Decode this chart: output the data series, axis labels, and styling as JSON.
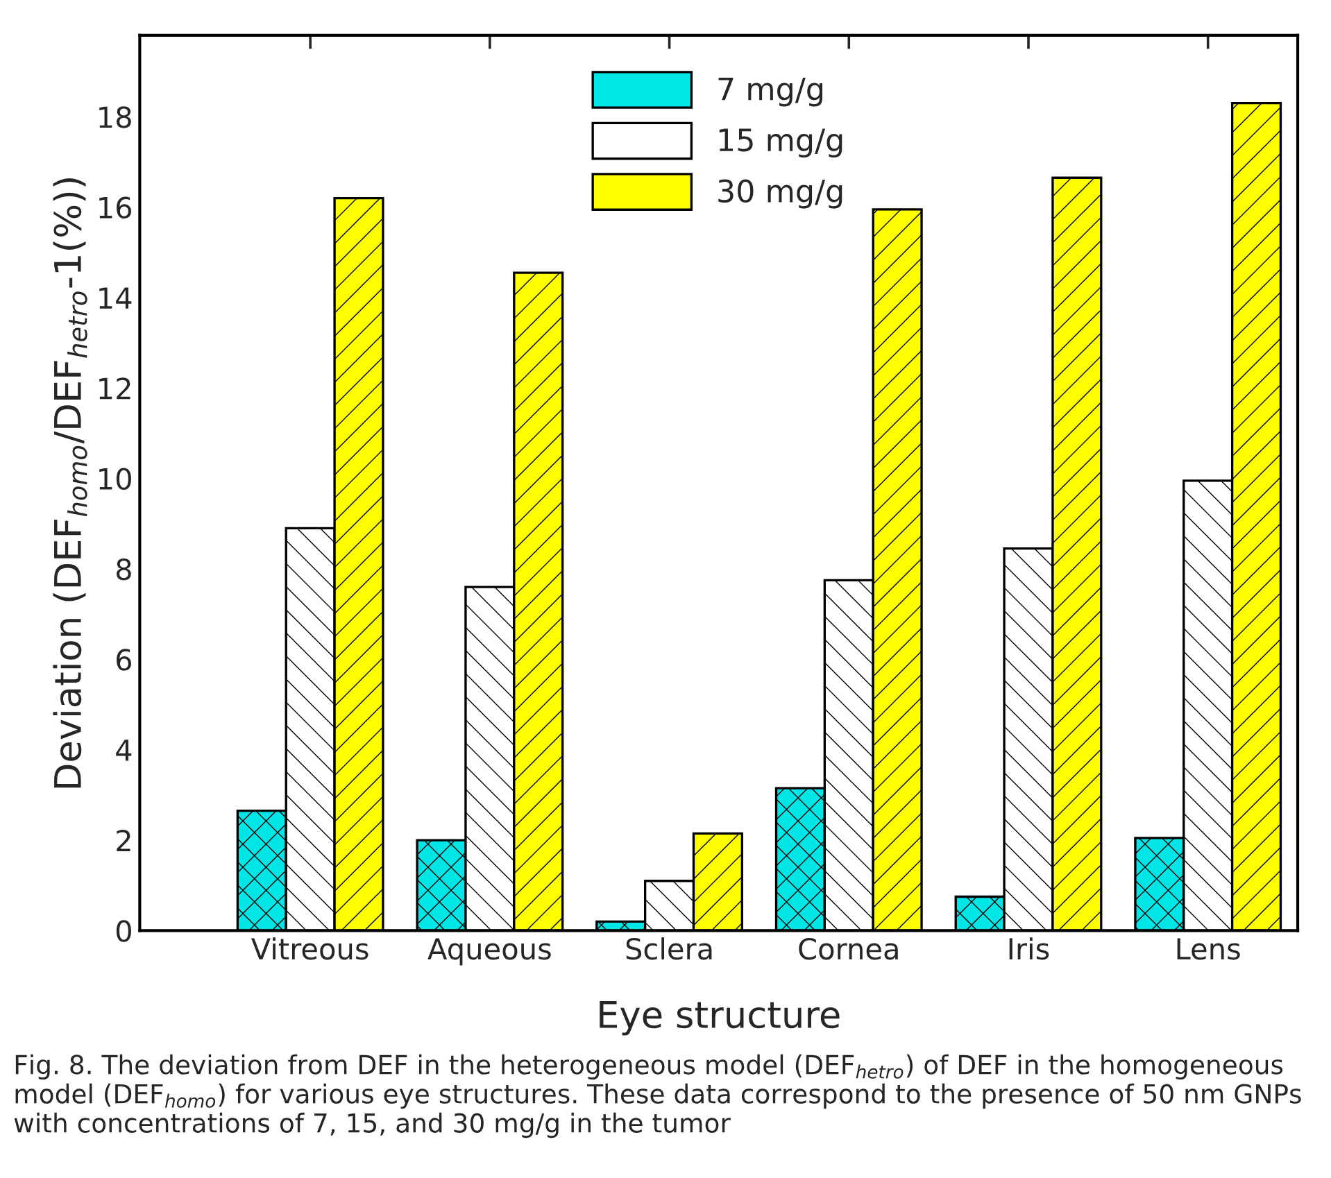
{
  "chart_data": {
    "type": "bar",
    "xlabel": "Eye structure",
    "ylabel": "Deviation (DEF$_{homo}$/DEF$_{hetro}$-1(%))",
    "categories": [
      "Vitreous",
      "Aqueous",
      "Sclera",
      "Cornea",
      "Iris",
      "Lens"
    ],
    "series": [
      {
        "name": "7 mg/g",
        "color": "#00e5e5",
        "values": [
          2.65,
          2.0,
          0.2,
          3.15,
          0.75,
          2.05
        ]
      },
      {
        "name": "15 mg/g",
        "color": "#ffffff",
        "values": [
          8.9,
          7.6,
          1.1,
          7.75,
          8.45,
          9.95
        ]
      },
      {
        "name": "30 mg/g",
        "color": "#ffff00",
        "values": [
          16.2,
          14.55,
          2.15,
          15.95,
          16.65,
          18.3
        ]
      }
    ],
    "ylim": [
      0,
      19.8
    ],
    "yticks": [
      0,
      2,
      4,
      6,
      8,
      10,
      12,
      14,
      16,
      18
    ],
    "grid": false,
    "legend": "top",
    "annotations": [
      "Fig. 8. The deviation from DEF in the heterogeneous model (DEF$_{hetro}$) of DEF in the homogeneous model (DEF$_{homo}$) for various eye structures. These data correspond to the presence of 50 nm GNPs with concentrations of 7, 15, and 30 mg/g in the tumor"
    ]
  }
}
